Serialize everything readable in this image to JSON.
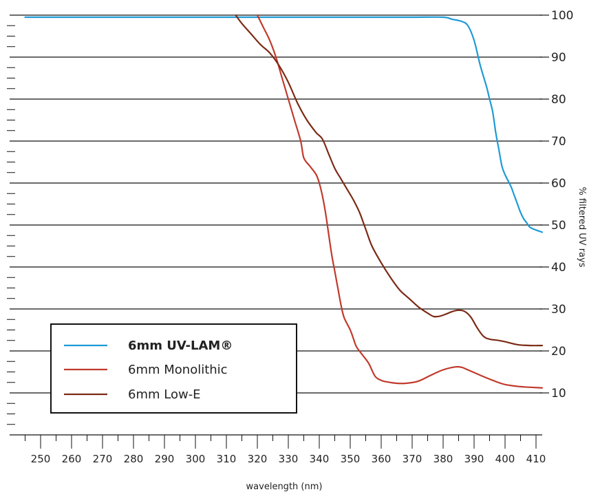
{
  "chart_data": {
    "type": "line",
    "title": "",
    "xlabel": "wavelength (nm)",
    "ylabel": "% filtered UV rays",
    "xlim": [
      240,
      412
    ],
    "ylim": [
      0,
      100
    ],
    "x_ticks": [
      250,
      260,
      270,
      280,
      290,
      300,
      310,
      320,
      330,
      340,
      350,
      360,
      370,
      380,
      390,
      400,
      410
    ],
    "y_ticks": [
      10,
      20,
      30,
      40,
      50,
      60,
      70,
      80,
      90,
      100
    ],
    "grid": "horizontal",
    "legend_position": "bottom-left",
    "series": [
      {
        "name": "6mm UV-LAM®",
        "color": "#1e9ad6",
        "bold": true,
        "points": [
          [
            245,
            99.5
          ],
          [
            250,
            99.5
          ],
          [
            260,
            99.5
          ],
          [
            270,
            99.5
          ],
          [
            280,
            99.5
          ],
          [
            290,
            99.5
          ],
          [
            300,
            99.5
          ],
          [
            310,
            99.5
          ],
          [
            320,
            99.5
          ],
          [
            330,
            99.5
          ],
          [
            340,
            99.5
          ],
          [
            350,
            99.5
          ],
          [
            360,
            99.5
          ],
          [
            370,
            99.5
          ],
          [
            380,
            99.5
          ],
          [
            383,
            99
          ],
          [
            386,
            98.5
          ],
          [
            388,
            97.5
          ],
          [
            390,
            94
          ],
          [
            392,
            88
          ],
          [
            394,
            83
          ],
          [
            395,
            80
          ],
          [
            396,
            77
          ],
          [
            397,
            72
          ],
          [
            398,
            68
          ],
          [
            399,
            64
          ],
          [
            400,
            62
          ],
          [
            401,
            60.5
          ],
          [
            402,
            59
          ],
          [
            403,
            57
          ],
          [
            404,
            55
          ],
          [
            405,
            53
          ],
          [
            406,
            51.5
          ],
          [
            407,
            50.5
          ],
          [
            408,
            49.5
          ],
          [
            410,
            48.8
          ],
          [
            412,
            48.3
          ]
        ]
      },
      {
        "name": "6mm Monolithic",
        "color": "#c0392b",
        "bold": false,
        "points": [
          [
            320,
            100
          ],
          [
            322,
            97
          ],
          [
            324,
            94
          ],
          [
            326,
            90
          ],
          [
            328,
            85
          ],
          [
            330,
            80
          ],
          [
            332,
            75
          ],
          [
            334,
            70
          ],
          [
            335,
            66
          ],
          [
            337,
            64
          ],
          [
            339,
            62
          ],
          [
            340,
            60
          ],
          [
            341,
            57
          ],
          [
            342,
            53
          ],
          [
            343,
            48
          ],
          [
            344,
            43
          ],
          [
            345,
            39
          ],
          [
            346,
            35
          ],
          [
            347,
            31
          ],
          [
            348,
            28
          ],
          [
            350,
            25
          ],
          [
            351,
            23
          ],
          [
            352,
            21
          ],
          [
            354,
            19
          ],
          [
            356,
            17
          ],
          [
            358,
            14
          ],
          [
            360,
            13
          ],
          [
            362,
            12.6
          ],
          [
            365,
            12.3
          ],
          [
            368,
            12.3
          ],
          [
            372,
            12.8
          ],
          [
            376,
            14.2
          ],
          [
            380,
            15.5
          ],
          [
            384,
            16.2
          ],
          [
            386,
            16.1
          ],
          [
            388,
            15.5
          ],
          [
            392,
            14.2
          ],
          [
            396,
            13.0
          ],
          [
            400,
            12.0
          ],
          [
            405,
            11.5
          ],
          [
            412,
            11.2
          ]
        ]
      },
      {
        "name": "6mm Low-E",
        "color": "#7b2a14",
        "bold": false,
        "points": [
          [
            313,
            100
          ],
          [
            315,
            98
          ],
          [
            318,
            95.5
          ],
          [
            321,
            93
          ],
          [
            324,
            91
          ],
          [
            327,
            88
          ],
          [
            330,
            84
          ],
          [
            333,
            79
          ],
          [
            336,
            75
          ],
          [
            339,
            72
          ],
          [
            341,
            70.5
          ],
          [
            343,
            67
          ],
          [
            345,
            63.5
          ],
          [
            347,
            61
          ],
          [
            349,
            58.5
          ],
          [
            351,
            56
          ],
          [
            353,
            53
          ],
          [
            355,
            49
          ],
          [
            357,
            45
          ],
          [
            360,
            41
          ],
          [
            363,
            37.5
          ],
          [
            366,
            34.5
          ],
          [
            369,
            32.5
          ],
          [
            372,
            30.5
          ],
          [
            375,
            29
          ],
          [
            377,
            28.2
          ],
          [
            379,
            28.3
          ],
          [
            381,
            28.8
          ],
          [
            383,
            29.4
          ],
          [
            385,
            29.7
          ],
          [
            387,
            29.4
          ],
          [
            389,
            28
          ],
          [
            391,
            25.5
          ],
          [
            393,
            23.5
          ],
          [
            395,
            22.8
          ],
          [
            398,
            22.5
          ],
          [
            400,
            22.2
          ],
          [
            404,
            21.5
          ],
          [
            408,
            21.3
          ],
          [
            412,
            21.3
          ]
        ]
      }
    ]
  }
}
